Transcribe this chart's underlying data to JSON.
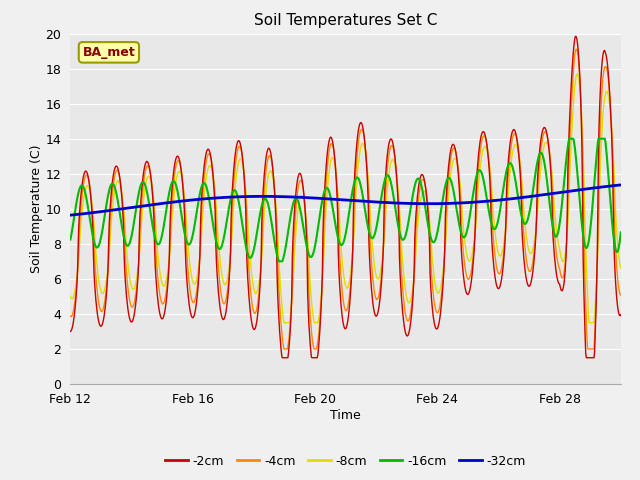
{
  "title": "Soil Temperatures Set C",
  "xlabel": "Time",
  "ylabel": "Soil Temperature (C)",
  "annotation": "BA_met",
  "ylim": [
    0,
    20
  ],
  "xlim_days": 18,
  "fig_facecolor": "#f0f0f0",
  "ax_facecolor": "#e8e8e8",
  "grid_color": "#ffffff",
  "colors": {
    "s2": "#cc0000",
    "s4": "#ff8800",
    "s8": "#dddd00",
    "s16": "#00bb00",
    "s32": "#0000cc"
  },
  "legend_labels": [
    "-2cm",
    "-4cm",
    "-8cm",
    "-16cm",
    "-32cm"
  ],
  "legend_colors": [
    "#cc0000",
    "#ff8800",
    "#dddd00",
    "#00bb00",
    "#0000cc"
  ],
  "x_tick_positions": [
    0,
    4,
    8,
    12,
    16
  ],
  "x_tick_labels": [
    "Feb 12",
    "Feb 16",
    "Feb 20",
    "Feb 24",
    "Feb 28"
  ],
  "y_ticks": [
    0,
    2,
    4,
    6,
    8,
    10,
    12,
    14,
    16,
    18,
    20
  ],
  "n_points": 864,
  "seed": 0
}
